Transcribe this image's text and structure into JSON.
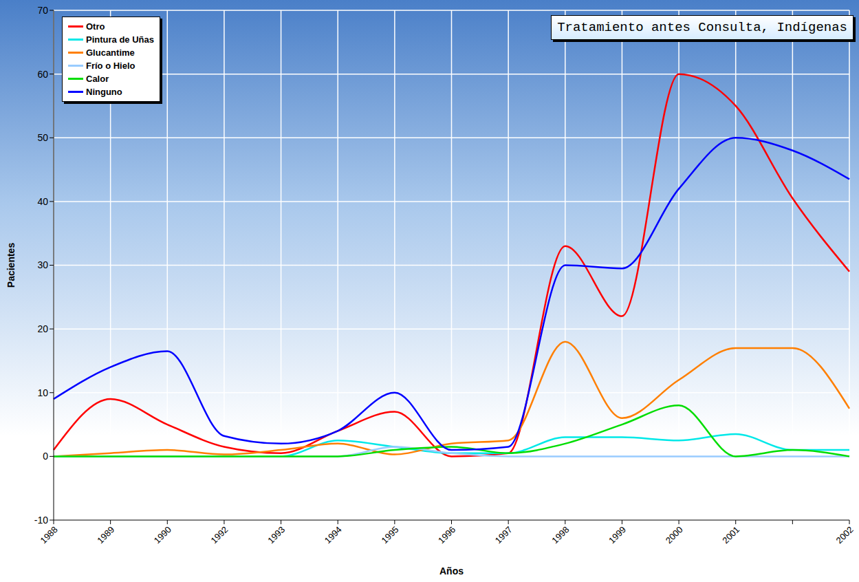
{
  "chart_data": {
    "type": "line",
    "title": "Tratamiento antes Consulta, Indígenas",
    "x_label": "Años",
    "y_label": "Pacientes",
    "categories": [
      "1988",
      "1989",
      "1990",
      "1992",
      "1993",
      "1994",
      "1995",
      "1996",
      "1997",
      "1998",
      "1999",
      "2000",
      "2001",
      null,
      "2002"
    ],
    "series": [
      {
        "name": "Otro",
        "color": "#ff0000",
        "values": [
          1,
          9,
          5,
          1.5,
          0.5,
          4,
          7,
          0,
          0.5,
          33,
          22,
          60,
          55,
          40.5,
          29
        ]
      },
      {
        "name": "Pintura de Uñas",
        "color": "#00e8e8",
        "values": [
          0,
          0,
          0,
          0,
          0,
          2.5,
          1.5,
          0.5,
          0.5,
          3,
          3,
          2.5,
          3.5,
          1,
          1
        ]
      },
      {
        "name": "Glucantime",
        "color": "#ff7f00",
        "values": [
          0,
          0.5,
          1,
          0.3,
          1,
          2,
          0.3,
          2,
          2.5,
          18,
          6,
          12,
          17,
          17,
          7.5
        ]
      },
      {
        "name": "Frío o Hielo",
        "color": "#99ccff",
        "values": [
          0,
          0,
          0,
          0,
          0,
          0,
          1.5,
          0.5,
          0,
          0,
          0,
          0,
          0,
          0,
          0
        ]
      },
      {
        "name": "Calor",
        "color": "#00dd00",
        "values": [
          0,
          0,
          0,
          0,
          0,
          0,
          1,
          1.5,
          0.5,
          2,
          5,
          8,
          0,
          1,
          0
        ]
      },
      {
        "name": "Ninguno",
        "color": "#0000ff",
        "values": [
          9,
          14,
          16.5,
          3.2,
          2,
          4,
          10,
          1,
          1.5,
          30,
          29.5,
          42,
          50,
          48,
          43.5
        ]
      }
    ],
    "ylim": [
      -10,
      70
    ],
    "yticks": [
      -10,
      0,
      10,
      20,
      30,
      40,
      50,
      60,
      70
    ],
    "grid": true,
    "legend": "top-left"
  }
}
